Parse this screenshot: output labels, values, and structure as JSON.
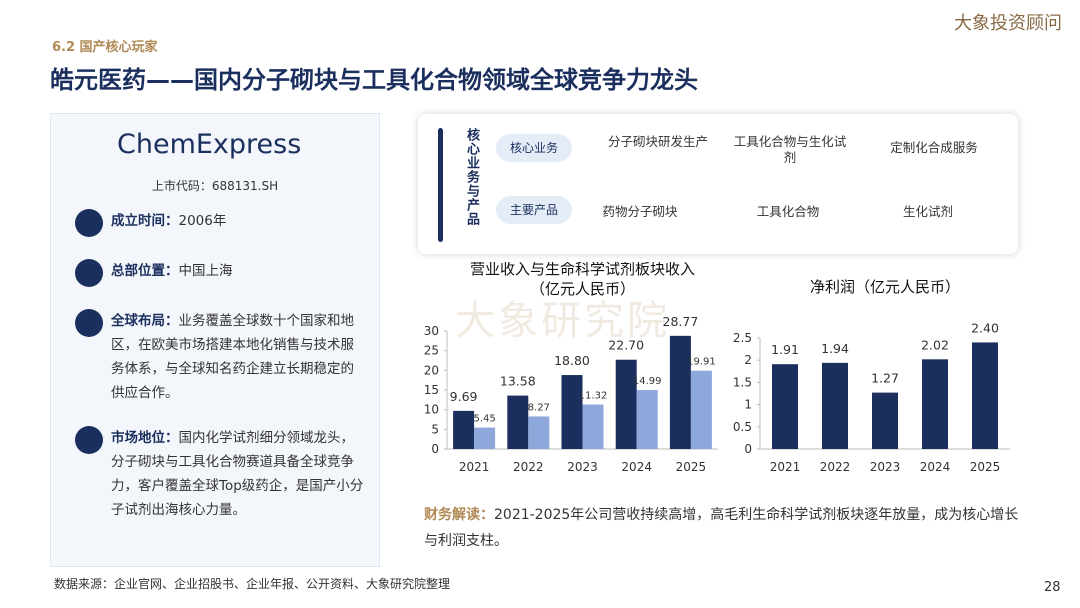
{
  "header": {
    "section": "6.2 国产核心玩家",
    "title": "皓元医药——国内分子砌块与工具化合物领域全球竞争力龙头",
    "brand": "大象投资顾问"
  },
  "profile": {
    "logo": "ChemExpress",
    "code": "上市代码：688131.SH",
    "items": [
      {
        "label": "成立时间：",
        "text": "2006年"
      },
      {
        "label": "总部位置：",
        "text": "中国上海"
      },
      {
        "label": "全球布局：",
        "text": "业务覆盖全球数十个国家和地区，在欧美市场搭建本地化销售与技术服务体系，与全球知名药企建立长期稳定的供应合作。"
      },
      {
        "label": "市场地位：",
        "text": "国内化学试剂细分领域龙头，分子砌块与工具化合物赛道具备全球竞争力，客户覆盖全球Top级药企，是国产小分子试剂出海核心力量。"
      }
    ]
  },
  "business": {
    "heading": "核心业务与产品",
    "rows": [
      {
        "label": "核心业务",
        "items": [
          "分子砌块研发生产",
          "工具化合物与生化试剂",
          "定制化合成服务"
        ]
      },
      {
        "label": "主要产品",
        "items": [
          "药物分子砌块",
          "工具化合物",
          "生化试剂"
        ]
      }
    ]
  },
  "watermark": "大象研究院",
  "chart_data": [
    {
      "type": "bar",
      "title": [
        "营业收入与生命科学试剂板块收入",
        "（亿元人民币）"
      ],
      "categories": [
        "2021",
        "2022",
        "2023",
        "2024",
        "2025"
      ],
      "series": [
        {
          "color": "#1b2f5e",
          "values": [
            9.69,
            13.58,
            18.8,
            22.7,
            28.77
          ],
          "value_labels": [
            "9.69",
            "13.58",
            "18.80",
            "22.70",
            "28.77"
          ]
        },
        {
          "color": "#8fa8dc",
          "values": [
            5.45,
            8.27,
            11.32,
            14.99,
            19.91
          ]
        }
      ],
      "ylim": [
        0,
        30
      ],
      "yticks": [
        0,
        5,
        10,
        15,
        20,
        25,
        30
      ]
    },
    {
      "type": "bar",
      "title": [
        "净利润（亿元人民币）"
      ],
      "categories": [
        "2021",
        "2022",
        "2023",
        "2024",
        "2025"
      ],
      "series": [
        {
          "color": "#1b2f5e",
          "values": [
            1.91,
            1.94,
            1.27,
            2.02,
            2.4
          ],
          "value_labels": [
            "1.91",
            "1.94",
            "1.27",
            "2.02",
            "2.40"
          ]
        }
      ],
      "ylim": [
        0,
        2.5
      ],
      "yticks": [
        0,
        0.5,
        1,
        1.5,
        2,
        2.5
      ]
    }
  ],
  "analysis": {
    "label": "财务解读：",
    "text": "2021-2025年公司营收持续高增，高毛利生命科学试剂板块逐年放量，成为核心增长与利润支柱。"
  },
  "footer": {
    "source": "数据来源：企业官网、企业招股书、企业年报、公开资料、大象研究院整理",
    "page": "28"
  }
}
